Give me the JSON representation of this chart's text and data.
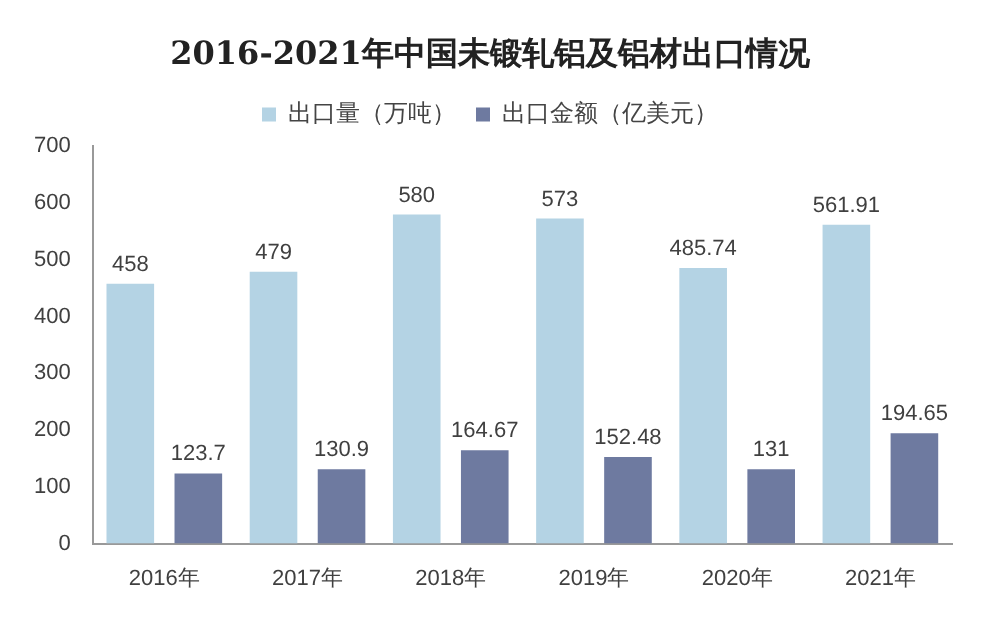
{
  "chart_data": {
    "type": "bar",
    "title": "2016-2021年中国未锻轧铝及铝材出口情况",
    "categories": [
      "2016年",
      "2017年",
      "2018年",
      "2019年",
      "2020年",
      "2021年"
    ],
    "series": [
      {
        "name": "出口量（万吨）",
        "color": "#b4d3e4",
        "values": [
          458,
          479,
          580,
          573,
          485.74,
          561.91
        ]
      },
      {
        "name": "出口金额（亿美元）",
        "color": "#6e7aa0",
        "values": [
          123.7,
          130.9,
          164.67,
          152.48,
          131,
          194.65
        ]
      }
    ],
    "ylim": [
      0,
      700
    ],
    "yticks": [
      0,
      100,
      200,
      300,
      400,
      500,
      600,
      700
    ],
    "grid": false,
    "legend": "top",
    "data_labels": true
  }
}
